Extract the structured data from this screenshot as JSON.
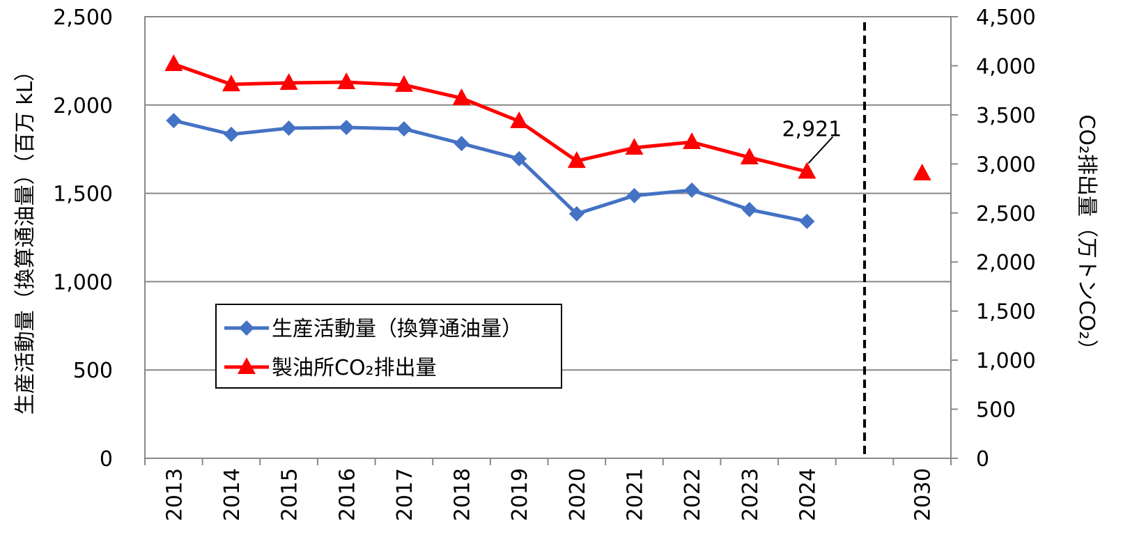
{
  "chart_data": {
    "type": "line",
    "categories": [
      "2013",
      "2014",
      "2015",
      "2016",
      "2017",
      "2018",
      "2019",
      "2020",
      "2021",
      "2022",
      "2023",
      "2024",
      null,
      "2030"
    ],
    "y_label": "生産活動量（換算通油量）（百万 kL）",
    "y2_label": "CO₂排出量（万トンCO₂）",
    "ylim": [
      0,
      2500
    ],
    "yticks": [
      0,
      500,
      {
        "value": 1000,
        "label": "1,000"
      },
      {
        "value": 1500,
        "label": "1,500"
      },
      {
        "value": 2000,
        "label": "2,000"
      },
      {
        "value": 2500,
        "label": "2,500"
      }
    ],
    "y2lim": [
      0,
      4500
    ],
    "y2ticks": [
      0,
      500,
      {
        "value": 1000,
        "label": "1,000"
      },
      {
        "value": 1500,
        "label": "1,500"
      },
      {
        "value": 2000,
        "label": "2,000"
      },
      {
        "value": 2500,
        "label": "2,500"
      },
      {
        "value": 3000,
        "label": "3,000"
      },
      {
        "value": 3500,
        "label": "3,500"
      },
      {
        "value": 4000,
        "label": "4,000"
      },
      {
        "value": 4500,
        "label": "4,500"
      }
    ],
    "grid": true,
    "series": [
      {
        "name": "生産活動量（換算通油量）",
        "color": "#4472c4",
        "marker": "diamond",
        "values": [
          1912,
          1834,
          1869,
          1873,
          1865,
          1782,
          1696,
          1384,
          1487,
          1518,
          1408,
          1341,
          null,
          null
        ]
      },
      {
        "name": "製油所CO₂排出量",
        "color": "#ff0000",
        "marker": "triangle",
        "axis": "y2",
        "values": [
          4017,
          3811,
          3826,
          3833,
          3805,
          3670,
          3435,
          3030,
          3165,
          3222,
          3066,
          2921,
          null,
          2903
        ],
        "value_labels": [
          null,
          null,
          null,
          null,
          null,
          null,
          null,
          null,
          null,
          null,
          null,
          "2,921",
          null,
          null
        ]
      }
    ]
  }
}
